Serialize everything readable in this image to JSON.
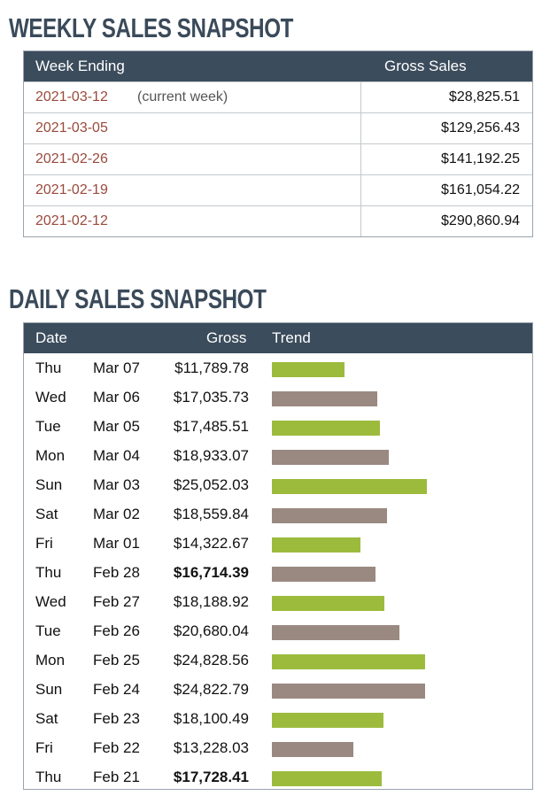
{
  "weekly": {
    "title": "WEEKLY SALES SNAPSHOT",
    "headers": {
      "week": "Week Ending",
      "gross": "Gross Sales"
    },
    "rows": [
      {
        "date": "2021-03-12",
        "note": "(current week)",
        "gross": "$28,825.51"
      },
      {
        "date": "2021-03-05",
        "note": "",
        "gross": "$129,256.43"
      },
      {
        "date": "2021-02-26",
        "note": "",
        "gross": "$141,192.25"
      },
      {
        "date": "2021-02-19",
        "note": "",
        "gross": "$161,054.22"
      },
      {
        "date": "2021-02-12",
        "note": "",
        "gross": "$290,860.94"
      }
    ]
  },
  "daily": {
    "title": "DAILY SALES SNAPSHOT",
    "headers": {
      "date": "Date",
      "gross": "Gross",
      "trend": "Trend"
    },
    "colors": {
      "green": "#9cbb3d",
      "gray": "#998980"
    },
    "rows": [
      {
        "day": "Thu",
        "date": "Mar 07",
        "gross": "$11,789.78",
        "value": 11789.78,
        "bar": "green",
        "bold": false
      },
      {
        "day": "Wed",
        "date": "Mar 06",
        "gross": "$17,035.73",
        "value": 17035.73,
        "bar": "gray",
        "bold": false
      },
      {
        "day": "Tue",
        "date": "Mar 05",
        "gross": "$17,485.51",
        "value": 17485.51,
        "bar": "green",
        "bold": false
      },
      {
        "day": "Mon",
        "date": "Mar 04",
        "gross": "$18,933.07",
        "value": 18933.07,
        "bar": "gray",
        "bold": false
      },
      {
        "day": "Sun",
        "date": "Mar 03",
        "gross": "$25,052.03",
        "value": 25052.03,
        "bar": "green",
        "bold": false
      },
      {
        "day": "Sat",
        "date": "Mar 02",
        "gross": "$18,559.84",
        "value": 18559.84,
        "bar": "gray",
        "bold": false
      },
      {
        "day": "Fri",
        "date": "Mar 01",
        "gross": "$14,322.67",
        "value": 14322.67,
        "bar": "green",
        "bold": false
      },
      {
        "day": "Thu",
        "date": "Feb 28",
        "gross": "$16,714.39",
        "value": 16714.39,
        "bar": "gray",
        "bold": true
      },
      {
        "day": "Wed",
        "date": "Feb 27",
        "gross": "$18,188.92",
        "value": 18188.92,
        "bar": "green",
        "bold": false
      },
      {
        "day": "Tue",
        "date": "Feb 26",
        "gross": "$20,680.04",
        "value": 20680.04,
        "bar": "gray",
        "bold": false
      },
      {
        "day": "Mon",
        "date": "Feb 25",
        "gross": "$24,828.56",
        "value": 24828.56,
        "bar": "green",
        "bold": false
      },
      {
        "day": "Sun",
        "date": "Feb 24",
        "gross": "$24,822.79",
        "value": 24822.79,
        "bar": "gray",
        "bold": false
      },
      {
        "day": "Sat",
        "date": "Feb 23",
        "gross": "$18,100.49",
        "value": 18100.49,
        "bar": "green",
        "bold": false
      },
      {
        "day": "Fri",
        "date": "Feb 22",
        "gross": "$13,228.03",
        "value": 13228.03,
        "bar": "gray",
        "bold": false
      },
      {
        "day": "Thu",
        "date": "Feb 21",
        "gross": "$17,728.41",
        "value": 17728.41,
        "bar": "green",
        "bold": true
      }
    ]
  }
}
